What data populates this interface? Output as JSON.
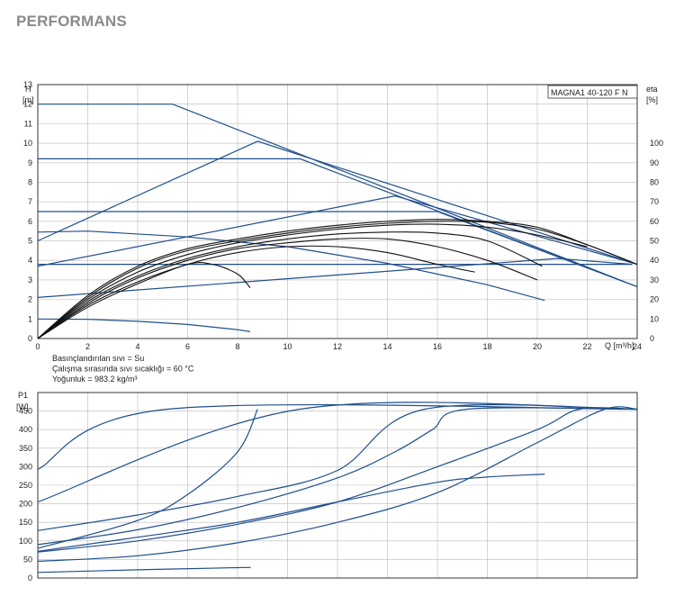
{
  "page_title": "PERFORMANS",
  "chart_data": [
    {
      "type": "line",
      "title": "MAGNA1 40-120 F N",
      "xlabel": "Q [m³/h]",
      "ylabel": "H [m]",
      "ylabel_unit": "[m]",
      "ylabel_name": "H",
      "y2label_name": "eta",
      "y2label_unit": "[%]",
      "xlim": [
        0,
        24
      ],
      "ylim": [
        0,
        13
      ],
      "y2lim": [
        0,
        130
      ],
      "x_ticks": [
        "0",
        "2",
        "4",
        "6",
        "8",
        "10",
        "12",
        "14",
        "16",
        "18",
        "20",
        "22",
        "24"
      ],
      "y_ticks": [
        "0",
        "1",
        "2",
        "3",
        "4",
        "5",
        "6",
        "7",
        "8",
        "9",
        "10",
        "11",
        "12",
        "13"
      ],
      "y2_ticks": [
        "0",
        "10",
        "20",
        "30",
        "40",
        "50",
        "60",
        "70",
        "80",
        "90",
        "100"
      ],
      "grid": true,
      "notes": [
        "Basınçlandırılan sıvı = Su",
        "Çalışma sırasında sıvı sıcaklığı = 60 °C",
        "Yoğunluk = 983.2 kg/m³"
      ],
      "series": [
        {
          "values": [
            [
              0,
              12
            ],
            [
              5.4,
              12
            ],
            [
              24,
              2.65
            ]
          ],
          "color": "#1f4e8c"
        },
        {
          "values": [
            [
              0,
              9.2
            ],
            [
              10.5,
              9.2
            ],
            [
              24,
              2.65
            ]
          ],
          "color": "#1f4e8c"
        },
        {
          "values": [
            [
              0,
              6.5
            ],
            [
              16,
              6.5
            ],
            [
              24,
              2.65
            ]
          ],
          "color": "#1f4e8c"
        },
        {
          "values": [
            [
              0,
              3.8
            ],
            [
              23.8,
              3.8
            ]
          ],
          "color": "#1f4e8c"
        },
        {
          "values": [
            [
              0,
              5.0
            ],
            [
              8.8,
              10.1
            ],
            [
              24,
              3.8
            ]
          ],
          "color": "#1f4e8c"
        },
        {
          "values": [
            [
              0,
              3.7
            ],
            [
              14.3,
              7.3
            ],
            [
              24,
              3.8
            ]
          ],
          "color": "#1f4e8c"
        },
        {
          "values": [
            [
              0,
              2.1
            ],
            [
              20.8,
              4.1
            ],
            [
              23.8,
              3.8
            ]
          ],
          "color": "#1f4e8c"
        },
        {
          "values": [
            [
              0,
              5.45
            ],
            [
              2,
              5.5
            ],
            [
              6,
              5.2
            ],
            [
              10,
              4.7
            ],
            [
              14,
              3.85
            ],
            [
              18,
              2.75
            ],
            [
              20.3,
              1.95
            ]
          ],
          "color": "#1f4e8c"
        },
        {
          "values": [
            [
              0,
              1.0
            ],
            [
              2,
              0.98
            ],
            [
              4,
              0.88
            ],
            [
              6,
              0.72
            ],
            [
              8,
              0.45
            ],
            [
              8.5,
              0.35
            ]
          ],
          "color": "#1f4e8c"
        }
      ],
      "eta_series": [
        {
          "values": [
            [
              0,
              0
            ],
            [
              2,
              22
            ],
            [
              4,
              37
            ],
            [
              6,
              46
            ],
            [
              8,
              51
            ],
            [
              10,
              55
            ],
            [
              12,
              58
            ],
            [
              14,
              60
            ],
            [
              16,
              61
            ],
            [
              18,
              60
            ],
            [
              20,
              57
            ],
            [
              22,
              48
            ],
            [
              24,
              38
            ]
          ],
          "color": "#111111"
        },
        {
          "values": [
            [
              0,
              0
            ],
            [
              2,
              21
            ],
            [
              4,
              36
            ],
            [
              6,
              45
            ],
            [
              8,
              50
            ],
            [
              10,
              54
            ],
            [
              12,
              57
            ],
            [
              14,
              59
            ],
            [
              16,
              60
            ],
            [
              18,
              59.5
            ],
            [
              20,
              56
            ],
            [
              22,
              48
            ],
            [
              24,
              38
            ]
          ],
          "color": "#111111"
        },
        {
          "values": [
            [
              0,
              0
            ],
            [
              2,
              20
            ],
            [
              4,
              34
            ],
            [
              6,
              43
            ],
            [
              8,
              49
            ],
            [
              10,
              53
            ],
            [
              12,
              56
            ],
            [
              14,
              58
            ],
            [
              16,
              58.5
            ],
            [
              18,
              57
            ],
            [
              20,
              53
            ],
            [
              22,
              47
            ]
          ],
          "color": "#111111"
        },
        {
          "values": [
            [
              0,
              0
            ],
            [
              2,
              19
            ],
            [
              4,
              32
            ],
            [
              6,
              41
            ],
            [
              8,
              47
            ],
            [
              10,
              51
            ],
            [
              12,
              53.5
            ],
            [
              14,
              54.5
            ],
            [
              16,
              54
            ],
            [
              18,
              50
            ],
            [
              20.2,
              37
            ]
          ],
          "color": "#111111"
        },
        {
          "values": [
            [
              0,
              0
            ],
            [
              2,
              18
            ],
            [
              4,
              31
            ],
            [
              6,
              40
            ],
            [
              8,
              46
            ],
            [
              10,
              49
            ],
            [
              12,
              51
            ],
            [
              14,
              51
            ],
            [
              16,
              47
            ],
            [
              18,
              40
            ],
            [
              20,
              30
            ]
          ],
          "color": "#111111"
        },
        {
          "values": [
            [
              0,
              0
            ],
            [
              2,
              17
            ],
            [
              4,
              29
            ],
            [
              6,
              38
            ],
            [
              8,
              44
            ],
            [
              10,
              47
            ],
            [
              12,
              47
            ],
            [
              14,
              44
            ],
            [
              16,
              38
            ],
            [
              17.5,
              34
            ]
          ],
          "color": "#111111"
        },
        {
          "values": [
            [
              0,
              0
            ],
            [
              2,
              16
            ],
            [
              4,
              28
            ],
            [
              6,
              38
            ],
            [
              7,
              38
            ],
            [
              8,
              33
            ],
            [
              8.5,
              26
            ]
          ],
          "color": "#111111"
        }
      ]
    },
    {
      "type": "line",
      "xlabel": "",
      "ylabel": "P1 [W]",
      "ylabel_name": "P1",
      "ylabel_unit": "[W]",
      "xlim": [
        0,
        24
      ],
      "ylim": [
        0,
        500
      ],
      "y_ticks": [
        "0",
        "50",
        "100",
        "150",
        "200",
        "250",
        "300",
        "350",
        "400",
        "450"
      ],
      "grid": true,
      "series": [
        {
          "values": [
            [
              0,
              293
            ],
            [
              5.2,
              455
            ],
            [
              24,
              455
            ]
          ],
          "color": "#1f4e8c"
        },
        {
          "values": [
            [
              0,
              205
            ],
            [
              10.5,
              455
            ],
            [
              24,
              455
            ]
          ],
          "color": "#1f4e8c"
        },
        {
          "values": [
            [
              0,
              128
            ],
            [
              4,
              170
            ],
            [
              8,
              220
            ],
            [
              12,
              290
            ],
            [
              15.5,
              455
            ],
            [
              24,
              455
            ]
          ],
          "color": "#1f4e8c"
        },
        {
          "values": [
            [
              0,
              80
            ],
            [
              4,
              155
            ],
            [
              6,
              225
            ],
            [
              8,
              340
            ],
            [
              8.8,
              455
            ]
          ],
          "color": "#1f4e8c"
        },
        {
          "values": [
            [
              0,
              90
            ],
            [
              4,
              130
            ],
            [
              8,
              190
            ],
            [
              12,
              270
            ],
            [
              14.3,
              340
            ],
            [
              15.8,
              400
            ],
            [
              17.2,
              455
            ],
            [
              24,
              455
            ]
          ],
          "color": "#1f4e8c"
        },
        {
          "values": [
            [
              0,
              70
            ],
            [
              4,
              100
            ],
            [
              8,
              145
            ],
            [
              12,
              205
            ],
            [
              16,
              300
            ],
            [
              20,
              400
            ],
            [
              21.7,
              455
            ],
            [
              24,
              455
            ]
          ],
          "color": "#1f4e8c"
        },
        {
          "values": [
            [
              0,
              45
            ],
            [
              4,
              60
            ],
            [
              8,
              95
            ],
            [
              12,
              150
            ],
            [
              16,
              230
            ],
            [
              20,
              365
            ],
            [
              22.7,
              455
            ],
            [
              24,
              455
            ]
          ],
          "color": "#1f4e8c"
        },
        {
          "values": [
            [
              0,
              72
            ],
            [
              4,
              110
            ],
            [
              8,
              150
            ],
            [
              12,
              205
            ],
            [
              16,
              258
            ],
            [
              18,
              272
            ],
            [
              20.3,
              280
            ]
          ],
          "color": "#1f4e8c"
        },
        {
          "values": [
            [
              0,
              15
            ],
            [
              4,
              22
            ],
            [
              8,
              28
            ],
            [
              8.5,
              28
            ]
          ],
          "color": "#1f4e8c"
        }
      ]
    }
  ]
}
